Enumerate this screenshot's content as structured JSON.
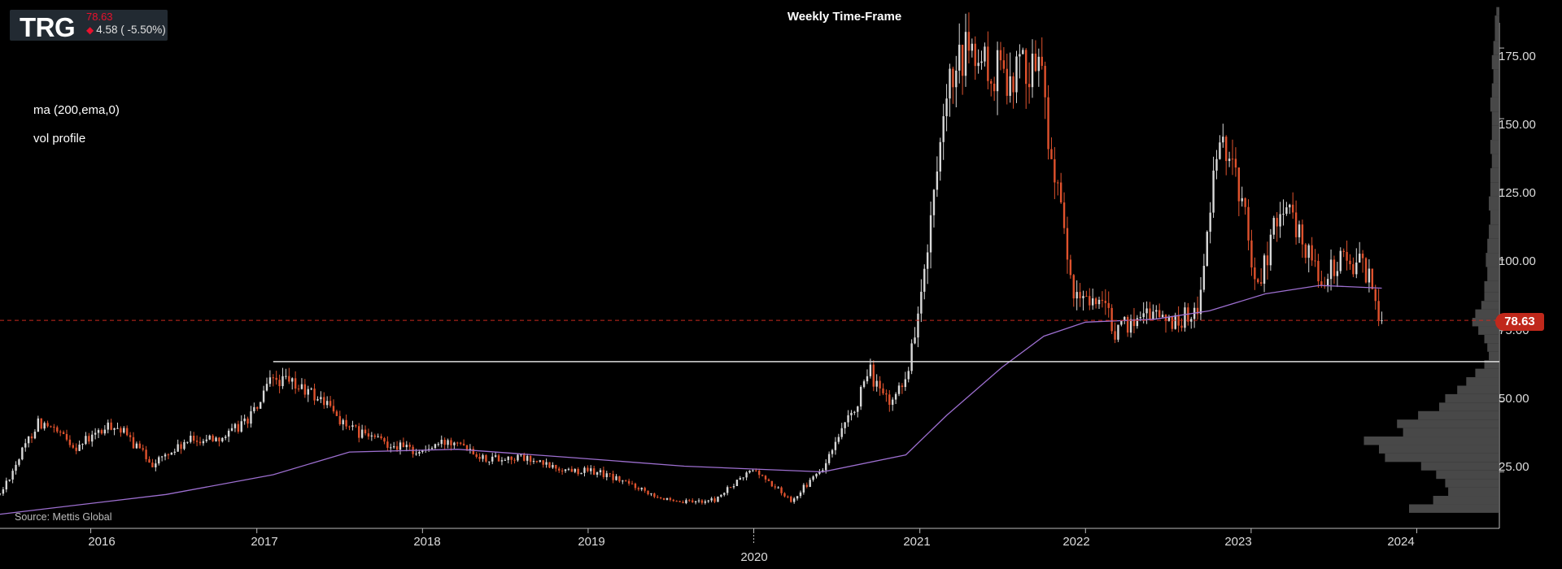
{
  "header": {
    "ticker": "TRG",
    "last_price": "78.63",
    "change": "4.58 ( -5.50%)"
  },
  "title": "Weekly Time-Frame",
  "indicators": [
    "ma (200,ema,0)",
    "vol profile"
  ],
  "source": "Source: Mettis Global",
  "last_price_tag": "78.63",
  "colors": {
    "background": "#000000",
    "up_candle": "#d8d8d8",
    "down_candle": "#e0522d",
    "ma_line": "#9d6fd0",
    "price_line": "#c8281e",
    "support_line": "#dddddd",
    "volume_profile": "#555555"
  },
  "chart_data": {
    "type": "candlestick",
    "timeframe": "weekly",
    "x_axis": {
      "type": "date",
      "range": [
        "2015-06-15",
        "2024-07-01"
      ],
      "ticks": [
        "2016",
        "2017",
        "2018",
        "2019",
        "2020",
        "2021",
        "2022",
        "2023",
        "2024"
      ]
    },
    "y_axis": {
      "position": "right",
      "range": [
        5,
        192
      ],
      "ticks": [
        "25.00",
        "50.00",
        "75.00",
        "100.00",
        "125.00",
        "150.00",
        "175.00"
      ]
    },
    "grid": false,
    "last_price": 78.63,
    "support_level": {
      "value": 64,
      "from": "2017-02-06",
      "to": "2024-07-01"
    },
    "price_anchors": [
      [
        "2015-06-15",
        17
      ],
      [
        "2015-09-07",
        43
      ],
      [
        "2015-11-30",
        34
      ],
      [
        "2016-02-22",
        42
      ],
      [
        "2016-05-16",
        28
      ],
      [
        "2016-08-08",
        36
      ],
      [
        "2016-10-31",
        38
      ],
      [
        "2016-12-26",
        46
      ],
      [
        "2017-02-06",
        58
      ],
      [
        "2017-04-03",
        55
      ],
      [
        "2017-05-29",
        50
      ],
      [
        "2017-07-24",
        40
      ],
      [
        "2017-10-02",
        36
      ],
      [
        "2017-12-25",
        32
      ],
      [
        "2018-03-19",
        37
      ],
      [
        "2018-05-14",
        30
      ],
      [
        "2018-08-06",
        30
      ],
      [
        "2018-10-29",
        26
      ],
      [
        "2019-01-21",
        25
      ],
      [
        "2019-04-15",
        20
      ],
      [
        "2019-07-08",
        14
      ],
      [
        "2019-10-07",
        15
      ],
      [
        "2019-12-30",
        26
      ],
      [
        "2020-03-23",
        15
      ],
      [
        "2020-06-01",
        26
      ],
      [
        "2020-08-03",
        45
      ],
      [
        "2020-09-14",
        60
      ],
      [
        "2020-10-26",
        48
      ],
      [
        "2020-12-07",
        62
      ],
      [
        "2021-01-11",
        95
      ],
      [
        "2021-02-08",
        128
      ],
      [
        "2021-03-08",
        160
      ],
      [
        "2021-04-19",
        175
      ],
      [
        "2021-06-07",
        165
      ],
      [
        "2021-08-09",
        168
      ],
      [
        "2021-09-20",
        172
      ],
      [
        "2021-10-25",
        130
      ],
      [
        "2021-12-06",
        85
      ],
      [
        "2022-01-17",
        88
      ],
      [
        "2022-03-14",
        74
      ],
      [
        "2022-05-16",
        83
      ],
      [
        "2022-07-11",
        78
      ],
      [
        "2022-09-05",
        82
      ],
      [
        "2022-10-17",
        135
      ],
      [
        "2022-11-14",
        140
      ],
      [
        "2022-12-19",
        115
      ],
      [
        "2023-01-16",
        90
      ],
      [
        "2023-03-06",
        120
      ],
      [
        "2023-05-01",
        105
      ],
      [
        "2023-06-12",
        92
      ],
      [
        "2023-07-24",
        102
      ],
      [
        "2023-09-04",
        98
      ],
      [
        "2023-09-25",
        90
      ],
      [
        "2023-10-09",
        82
      ],
      [
        "2023-10-16",
        78.63
      ]
    ],
    "moving_average": {
      "name": "ma (200,ema,0)",
      "points": [
        [
          "2015-06-15",
          10
        ],
        [
          "2016-06-15",
          17
        ],
        [
          "2017-02-06",
          24
        ],
        [
          "2017-07-24",
          32
        ],
        [
          "2018-03-19",
          33
        ],
        [
          "2018-12-01",
          30
        ],
        [
          "2019-08-01",
          27
        ],
        [
          "2020-06-01",
          25
        ],
        [
          "2020-12-01",
          31
        ],
        [
          "2021-03-01",
          45
        ],
        [
          "2021-07-01",
          62
        ],
        [
          "2021-10-01",
          73
        ],
        [
          "2022-01-01",
          78
        ],
        [
          "2022-06-01",
          79
        ],
        [
          "2022-10-01",
          82
        ],
        [
          "2023-02-01",
          88
        ],
        [
          "2023-06-01",
          91
        ],
        [
          "2023-10-16",
          90
        ]
      ]
    },
    "volume_profile": {
      "levels": [
        [
          12,
          0.3
        ],
        [
          15,
          0.22
        ],
        [
          18,
          0.17
        ],
        [
          21,
          0.18
        ],
        [
          24,
          0.21
        ],
        [
          27,
          0.26
        ],
        [
          30,
          0.38
        ],
        [
          33,
          0.4
        ],
        [
          36,
          0.45
        ],
        [
          39,
          0.32
        ],
        [
          42,
          0.34
        ],
        [
          45,
          0.27
        ],
        [
          48,
          0.2
        ],
        [
          51,
          0.18
        ],
        [
          54,
          0.14
        ],
        [
          57,
          0.11
        ],
        [
          60,
          0.08
        ],
        [
          63,
          0.05
        ],
        [
          66,
          0.035
        ],
        [
          69,
          0.04
        ],
        [
          72,
          0.05
        ],
        [
          75,
          0.07
        ],
        [
          78,
          0.09
        ],
        [
          81,
          0.08
        ],
        [
          84,
          0.06
        ],
        [
          87,
          0.05
        ],
        [
          90,
          0.05
        ],
        [
          95,
          0.04
        ],
        [
          100,
          0.045
        ],
        [
          105,
          0.04
        ],
        [
          110,
          0.035
        ],
        [
          115,
          0.03
        ],
        [
          120,
          0.035
        ],
        [
          125,
          0.03
        ],
        [
          130,
          0.03
        ],
        [
          135,
          0.025
        ],
        [
          140,
          0.03
        ],
        [
          145,
          0.025
        ],
        [
          150,
          0.025
        ],
        [
          155,
          0.03
        ],
        [
          160,
          0.025
        ],
        [
          165,
          0.02
        ],
        [
          170,
          0.025
        ],
        [
          175,
          0.02
        ],
        [
          180,
          0.015
        ],
        [
          185,
          0.015
        ],
        [
          188,
          0.01
        ]
      ]
    }
  }
}
